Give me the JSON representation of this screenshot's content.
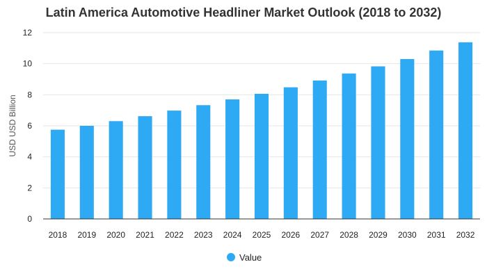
{
  "chart_data": {
    "type": "bar",
    "title": "Latin America Automotive Headliner Market Outlook (2018 to 2032)",
    "xlabel": "",
    "ylabel": "USD USD Billion",
    "categories": [
      "2018",
      "2019",
      "2020",
      "2021",
      "2022",
      "2023",
      "2024",
      "2025",
      "2026",
      "2027",
      "2028",
      "2029",
      "2030",
      "2031",
      "2032"
    ],
    "series": [
      {
        "name": "Value",
        "color": "#2eaaf5",
        "values": [
          5.75,
          6.0,
          6.3,
          6.62,
          6.98,
          7.33,
          7.7,
          8.06,
          8.48,
          8.92,
          9.37,
          9.83,
          10.3,
          10.85,
          11.38
        ]
      }
    ],
    "ylim": [
      0,
      12
    ],
    "yticks": [
      0,
      2,
      4,
      6,
      8,
      10,
      12
    ],
    "grid": true,
    "legend": "bottom-center"
  }
}
